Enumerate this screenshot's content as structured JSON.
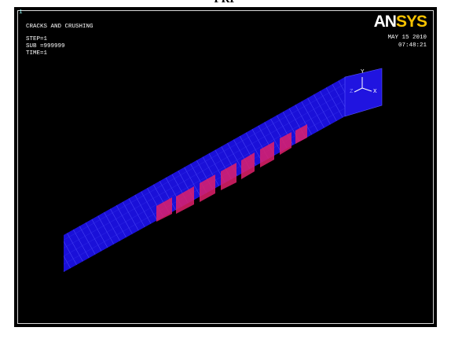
{
  "caption": "FRP",
  "window": {
    "number": "1",
    "title": "CRACKS AND CRUSHING",
    "step": "STEP=1",
    "sub": "SUB =999999",
    "time": "TIME=1",
    "logo_left": "AN",
    "logo_right": "SYS",
    "date": "MAY 15 2010",
    "clock": "07:48:21",
    "triad": {
      "y": "Y",
      "z": "Z",
      "x": "X"
    }
  }
}
